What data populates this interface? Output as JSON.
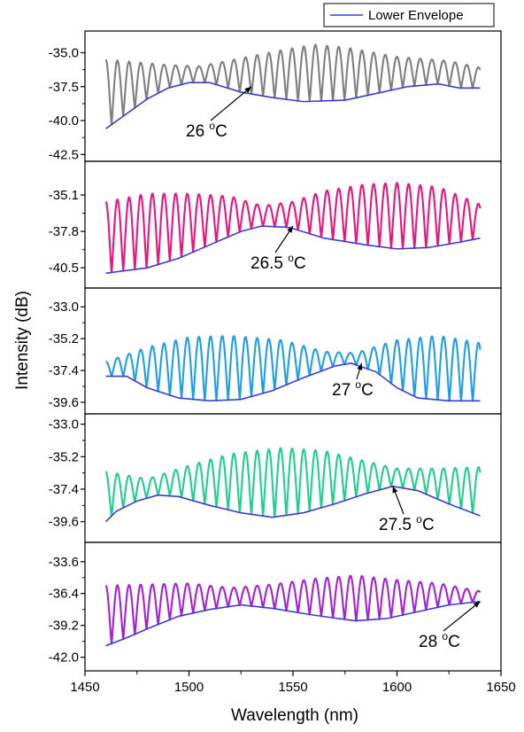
{
  "chart_data": {
    "type": "line",
    "xlabel": "Wavelength (nm)",
    "ylabel": "Intensity (dB)",
    "xlim": [
      1450,
      1650
    ],
    "x_ticks": [
      1450,
      1500,
      1550,
      1600,
      1650
    ],
    "legend": {
      "entries": [
        "Lower Envelope"
      ],
      "placement": "top-right",
      "color": "#3b3bd6"
    },
    "panels": [
      {
        "annotation": {
          "value": "26 ",
          "sup": "o",
          "unit": "C",
          "arrow_to": [
            1530,
            -37.5
          ]
        },
        "ylim": [
          -43.0,
          -33.4
        ],
        "y_ticks": [
          -35.0,
          -37.5,
          -40.0,
          -42.5
        ],
        "y_tick_labels": [
          "-35.0",
          "-37.5",
          "-40.0",
          "-42.5"
        ],
        "signal": {
          "color": "#7f7f7f",
          "period_nm": 5.6,
          "top": [
            [
              1460,
              -35.5
            ],
            [
              1490,
              -35.9
            ],
            [
              1505,
              -36.0
            ],
            [
              1525,
              -35.4
            ],
            [
              1545,
              -34.8
            ],
            [
              1560,
              -34.4
            ],
            [
              1575,
              -34.6
            ],
            [
              1600,
              -35.3
            ],
            [
              1625,
              -35.6
            ],
            [
              1640,
              -36.1
            ]
          ]
        },
        "envelope": [
          [
            1460,
            -40.6
          ],
          [
            1470,
            -39.5
          ],
          [
            1480,
            -38.4
          ],
          [
            1490,
            -37.6
          ],
          [
            1500,
            -37.2
          ],
          [
            1510,
            -37.2
          ],
          [
            1525,
            -37.9
          ],
          [
            1540,
            -38.3
          ],
          [
            1555,
            -38.6
          ],
          [
            1575,
            -38.5
          ],
          [
            1590,
            -38.0
          ],
          [
            1605,
            -37.5
          ],
          [
            1620,
            -37.3
          ],
          [
            1630,
            -37.6
          ],
          [
            1640,
            -37.6
          ]
        ]
      },
      {
        "annotation": {
          "value": "26.5 ",
          "sup": "o",
          "unit": "C",
          "arrow_to": [
            1550,
            -37.4
          ]
        },
        "ylim": [
          -42.0,
          -32.6
        ],
        "y_ticks": [
          -35.1,
          -37.8,
          -40.5
        ],
        "y_tick_labels": [
          "-35.1",
          "-37.8",
          "-40.5"
        ],
        "signal": {
          "color": "#e8157f",
          "period_nm": 5.6,
          "top": [
            [
              1460,
              -35.6
            ],
            [
              1480,
              -35.0
            ],
            [
              1500,
              -35.0
            ],
            [
              1520,
              -35.2
            ],
            [
              1535,
              -35.9
            ],
            [
              1550,
              -35.6
            ],
            [
              1565,
              -34.8
            ],
            [
              1585,
              -34.3
            ],
            [
              1600,
              -34.2
            ],
            [
              1620,
              -34.5
            ],
            [
              1640,
              -35.8
            ]
          ]
        },
        "envelope": [
          [
            1460,
            -40.9
          ],
          [
            1480,
            -40.5
          ],
          [
            1495,
            -39.8
          ],
          [
            1510,
            -38.8
          ],
          [
            1525,
            -37.8
          ],
          [
            1535,
            -37.4
          ],
          [
            1548,
            -37.5
          ],
          [
            1565,
            -38.3
          ],
          [
            1585,
            -38.8
          ],
          [
            1600,
            -39.1
          ],
          [
            1615,
            -39.0
          ],
          [
            1630,
            -38.6
          ],
          [
            1640,
            -38.3
          ]
        ]
      },
      {
        "annotation": {
          "value": "27 ",
          "sup": "o",
          "unit": "C",
          "arrow_to": [
            1583,
            -36.9
          ]
        },
        "ylim": [
          -40.4,
          -31.7
        ],
        "y_ticks": [
          -33.0,
          -35.2,
          -37.4,
          -39.6
        ],
        "y_tick_labels": [
          "-33.0",
          "-35.2",
          "-37.4",
          "-39.6"
        ],
        "signal": {
          "color": "#1e9ee6",
          "period_nm": 5.6,
          "top": [
            [
              1460,
              -36.8
            ],
            [
              1480,
              -35.8
            ],
            [
              1500,
              -35.1
            ],
            [
              1520,
              -35.0
            ],
            [
              1545,
              -35.3
            ],
            [
              1565,
              -36.1
            ],
            [
              1580,
              -36.2
            ],
            [
              1600,
              -35.3
            ],
            [
              1620,
              -35.0
            ],
            [
              1640,
              -35.5
            ]
          ]
        },
        "envelope": [
          [
            1460,
            -37.8
          ],
          [
            1470,
            -37.8
          ],
          [
            1480,
            -38.6
          ],
          [
            1495,
            -39.3
          ],
          [
            1510,
            -39.5
          ],
          [
            1525,
            -39.4
          ],
          [
            1540,
            -38.8
          ],
          [
            1555,
            -37.9
          ],
          [
            1570,
            -37.1
          ],
          [
            1578,
            -36.9
          ],
          [
            1590,
            -37.5
          ],
          [
            1600,
            -38.6
          ],
          [
            1610,
            -39.3
          ],
          [
            1625,
            -39.5
          ],
          [
            1640,
            -39.5
          ]
        ]
      },
      {
        "annotation": {
          "value": "27.5 ",
          "sup": "o",
          "unit": "C",
          "arrow_to": [
            1598,
            -37.2
          ]
        },
        "ylim": [
          -41.0,
          -32.3
        ],
        "y_ticks": [
          -33.0,
          -35.2,
          -37.4,
          -39.6
        ],
        "y_tick_labels": [
          "-33.0",
          "-35.2",
          "-37.4",
          "-39.6"
        ],
        "signal": {
          "color": "#1fcf8c",
          "period_nm": 5.6,
          "top": [
            [
              1460,
              -36.2
            ],
            [
              1480,
              -36.7
            ],
            [
              1500,
              -35.8
            ],
            [
              1520,
              -35.0
            ],
            [
              1545,
              -34.6
            ],
            [
              1565,
              -34.8
            ],
            [
              1585,
              -35.5
            ],
            [
              1600,
              -36.0
            ],
            [
              1620,
              -36.0
            ],
            [
              1640,
              -35.9
            ]
          ]
        },
        "envelope": [
          [
            1460,
            -39.6
          ],
          [
            1465,
            -38.9
          ],
          [
            1475,
            -38.2
          ],
          [
            1485,
            -37.8
          ],
          [
            1495,
            -37.9
          ],
          [
            1510,
            -38.5
          ],
          [
            1525,
            -39.0
          ],
          [
            1540,
            -39.3
          ],
          [
            1555,
            -39.0
          ],
          [
            1570,
            -38.4
          ],
          [
            1585,
            -37.7
          ],
          [
            1598,
            -37.2
          ],
          [
            1610,
            -37.5
          ],
          [
            1625,
            -38.4
          ],
          [
            1640,
            -39.2
          ]
        ]
      },
      {
        "annotation": {
          "value": "28 ",
          "sup": "o",
          "unit": "C",
          "arrow_to": [
            1640,
            -37.1
          ]
        },
        "ylim": [
          -43.2,
          -31.9
        ],
        "y_ticks": [
          -33.6,
          -36.4,
          -39.2,
          -42.0
        ],
        "y_tick_labels": [
          "-33.6",
          "-36.4",
          "-39.2",
          "-42.0"
        ],
        "signal": {
          "color": "#a521d8",
          "period_nm": 5.6,
          "top": [
            [
              1460,
              -35.7
            ],
            [
              1480,
              -35.6
            ],
            [
              1500,
              -35.5
            ],
            [
              1520,
              -35.9
            ],
            [
              1540,
              -35.6
            ],
            [
              1560,
              -35.1
            ],
            [
              1580,
              -34.8
            ],
            [
              1600,
              -35.2
            ],
            [
              1620,
              -35.5
            ],
            [
              1640,
              -36.2
            ]
          ]
        },
        "envelope": [
          [
            1460,
            -41.0
          ],
          [
            1470,
            -40.3
          ],
          [
            1480,
            -39.5
          ],
          [
            1495,
            -38.4
          ],
          [
            1510,
            -37.8
          ],
          [
            1525,
            -37.4
          ],
          [
            1540,
            -37.7
          ],
          [
            1560,
            -38.3
          ],
          [
            1580,
            -38.8
          ],
          [
            1595,
            -38.6
          ],
          [
            1610,
            -38.0
          ],
          [
            1625,
            -37.4
          ],
          [
            1640,
            -37.1
          ]
        ]
      }
    ]
  }
}
